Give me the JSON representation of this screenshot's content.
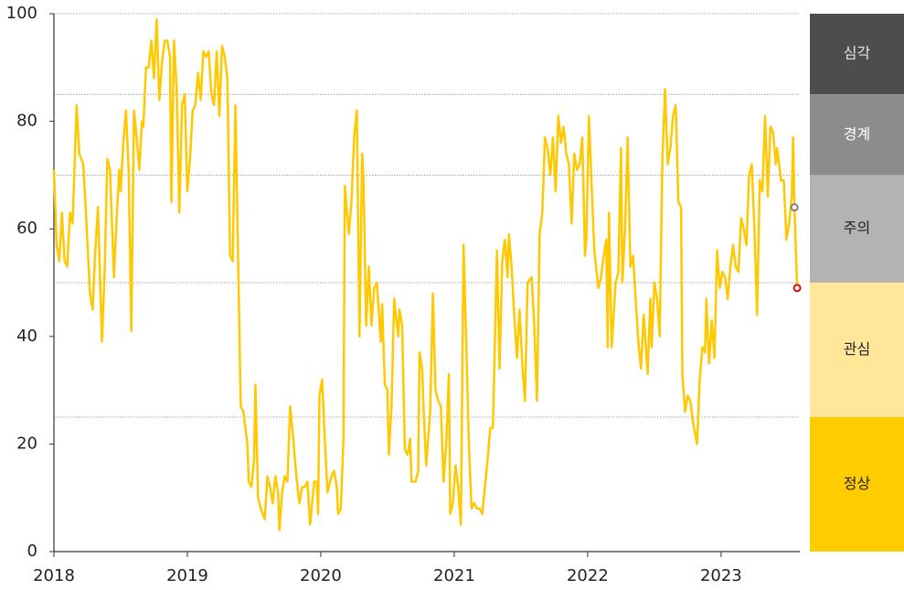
{
  "chart_data": {
    "type": "line",
    "x": [
      2018.0,
      2018.02,
      2018.04,
      2018.06,
      2018.08,
      2018.1,
      2018.12,
      2018.14,
      2018.17,
      2018.19,
      2018.22,
      2018.24,
      2018.27,
      2018.29,
      2018.31,
      2018.33,
      2018.36,
      2018.38,
      2018.4,
      2018.42,
      2018.45,
      2018.47,
      2018.49,
      2018.5,
      2018.52,
      2018.54,
      2018.56,
      2018.58,
      2018.6,
      2018.62,
      2018.64,
      2018.66,
      2018.67,
      2018.69,
      2018.71,
      2018.73,
      2018.75,
      2018.77,
      2018.79,
      2018.81,
      2018.83,
      2018.85,
      2018.87,
      2018.88,
      2018.9,
      2018.92,
      2018.94,
      2018.96,
      2018.98,
      2019.0,
      2019.02,
      2019.04,
      2019.06,
      2019.08,
      2019.1,
      2019.12,
      2019.14,
      2019.16,
      2019.18,
      2019.2,
      2019.22,
      2019.24,
      2019.26,
      2019.28,
      2019.3,
      2019.32,
      2019.34,
      2019.36,
      2019.38,
      2019.4,
      2019.42,
      2019.45,
      2019.46,
      2019.48,
      2019.5,
      2019.51,
      2019.53,
      2019.55,
      2019.58,
      2019.6,
      2019.62,
      2019.64,
      2019.66,
      2019.68,
      2019.69,
      2019.71,
      2019.73,
      2019.75,
      2019.77,
      2019.79,
      2019.81,
      2019.83,
      2019.84,
      2019.86,
      2019.88,
      2019.9,
      2019.92,
      2019.95,
      2019.97,
      2019.98,
      2019.99,
      2020.01,
      2020.03,
      2020.05,
      2020.08,
      2020.1,
      2020.12,
      2020.13,
      2020.15,
      2020.17,
      2020.18,
      2020.21,
      2020.23,
      2020.25,
      2020.27,
      2020.29,
      2020.31,
      2020.32,
      2020.34,
      2020.36,
      2020.38,
      2020.4,
      2020.42,
      2020.45,
      2020.46,
      2020.48,
      2020.5,
      2020.51,
      2020.53,
      2020.55,
      2020.58,
      2020.59,
      2020.61,
      2020.63,
      2020.65,
      2020.67,
      2020.68,
      2020.71,
      2020.73,
      2020.74,
      2020.76,
      2020.77,
      2020.79,
      2020.82,
      2020.84,
      2020.86,
      2020.88,
      2020.9,
      2020.92,
      2020.94,
      2020.96,
      2020.97,
      2020.99,
      2021.01,
      2021.03,
      2021.05,
      2021.07,
      2021.09,
      2021.11,
      2021.13,
      2021.15,
      2021.17,
      2021.19,
      2021.21,
      2021.23,
      2021.25,
      2021.27,
      2021.29,
      2021.32,
      2021.34,
      2021.36,
      2021.38,
      2021.4,
      2021.41,
      2021.43,
      2021.45,
      2021.47,
      2021.49,
      2021.51,
      2021.53,
      2021.55,
      2021.58,
      2021.6,
      2021.62,
      2021.64,
      2021.66,
      2021.68,
      2021.7,
      2021.72,
      2021.74,
      2021.76,
      2021.78,
      2021.8,
      2021.82,
      2021.84,
      2021.86,
      2021.88,
      2021.9,
      2021.92,
      2021.94,
      2021.96,
      2021.98,
      2021.99,
      2022.01,
      2022.03,
      2022.05,
      2022.08,
      2022.1,
      2022.12,
      2022.14,
      2022.15,
      2022.16,
      2022.18,
      2022.21,
      2022.23,
      2022.25,
      2022.26,
      2022.28,
      2022.3,
      2022.32,
      2022.34,
      2022.36,
      2022.38,
      2022.4,
      2022.42,
      2022.45,
      2022.47,
      2022.48,
      2022.5,
      2022.52,
      2022.54,
      2022.56,
      2022.58,
      2022.6,
      2022.62,
      2022.64,
      2022.66,
      2022.68,
      2022.7,
      2022.71,
      2022.73,
      2022.75,
      2022.77,
      2022.79,
      2022.82,
      2022.84,
      2022.86,
      2022.88,
      2022.89,
      2022.91,
      2022.93,
      2022.95,
      2022.97,
      2022.99,
      2023.01,
      2023.03,
      2023.05,
      2023.07,
      2023.09,
      2023.11,
      2023.13,
      2023.15,
      2023.17,
      2023.19,
      2023.21,
      2023.23,
      2023.25,
      2023.27,
      2023.29,
      2023.31,
      2023.33,
      2023.35,
      2023.37,
      2023.39,
      2023.41,
      2023.42,
      2023.45,
      2023.47,
      2023.49,
      2023.51,
      2023.53,
      2023.54,
      2023.55,
      2023.57
    ],
    "series": [
      {
        "color": "#ffc800",
        "values": [
          71,
          57,
          54,
          63,
          54,
          53,
          63,
          61,
          83,
          74,
          72,
          63,
          48,
          45,
          56,
          64,
          39,
          52,
          73,
          71,
          51,
          62,
          71,
          67,
          76,
          82,
          71,
          41,
          82,
          77,
          71,
          80,
          79,
          90,
          90,
          95,
          88,
          99,
          84,
          91,
          95,
          95,
          92,
          65,
          95,
          86,
          63,
          83,
          85,
          67,
          73,
          82,
          83,
          89,
          84,
          93,
          92,
          93,
          85,
          83,
          93,
          81,
          94,
          92,
          88,
          55,
          54,
          83,
          55,
          27,
          26,
          20,
          13,
          12,
          17,
          31,
          10,
          8,
          6,
          14,
          12,
          9,
          14,
          11,
          4,
          11,
          14,
          13,
          27,
          22,
          16,
          11,
          9,
          12,
          12,
          13,
          5,
          13,
          13,
          7,
          29,
          32,
          21,
          11,
          14,
          15,
          12,
          7,
          8,
          21,
          68,
          59,
          65,
          77,
          82,
          40,
          74,
          69,
          42,
          53,
          42,
          49,
          50,
          39,
          46,
          31,
          30,
          18,
          27,
          47,
          40,
          45,
          42,
          19,
          18,
          21,
          13,
          13,
          15,
          37,
          34,
          27,
          16,
          26,
          48,
          30,
          28,
          27,
          13,
          20,
          33,
          7,
          9,
          16,
          12,
          5,
          57,
          39,
          20,
          8,
          9,
          8,
          8,
          7,
          12,
          17,
          23,
          23,
          56,
          34,
          54,
          58,
          51,
          59,
          53,
          44,
          36,
          45,
          35,
          28,
          50,
          51,
          42,
          28,
          59,
          63,
          77,
          75,
          70,
          77,
          67,
          81,
          76,
          79,
          74,
          72,
          61,
          74,
          71,
          72,
          77,
          55,
          58,
          81,
          68,
          56,
          49,
          51,
          55,
          58,
          38,
          63,
          38,
          50,
          52,
          75,
          50,
          60,
          77,
          53,
          55,
          47,
          39,
          34,
          44,
          33,
          47,
          38,
          50,
          47,
          40,
          73,
          86,
          72,
          75,
          81,
          83,
          65,
          64,
          33,
          26,
          29,
          28,
          24,
          20,
          32,
          38,
          37,
          47,
          35,
          43,
          36,
          56,
          49,
          52,
          51,
          47,
          53,
          57,
          53,
          52,
          62,
          60,
          57,
          70,
          72,
          60,
          44,
          69,
          67,
          81,
          66,
          79,
          78,
          72,
          75,
          69,
          69,
          58,
          61,
          66,
          77,
          64,
          49
        ]
      }
    ],
    "markers": [
      {
        "x": 2023.55,
        "y": 64,
        "color": "#808080"
      },
      {
        "x": 2023.57,
        "y": 49,
        "color": "#e00000"
      }
    ],
    "bands": [
      {
        "label": "심각",
        "from": 85,
        "to": 100,
        "color": "#4d4d4d",
        "text_color": "#e6e6e6"
      },
      {
        "label": "경계",
        "from": 70,
        "to": 85,
        "color": "#8c8c8c",
        "text_color": "#ffffff"
      },
      {
        "label": "주의",
        "from": 50,
        "to": 70,
        "color": "#b3b3b3",
        "text_color": "#222222"
      },
      {
        "label": "관심",
        "from": 25,
        "to": 50,
        "color": "#ffe699",
        "text_color": "#222222"
      },
      {
        "label": "정상",
        "from": 0,
        "to": 25,
        "color": "#ffcc00",
        "text_color": "#222222"
      }
    ],
    "xlim": [
      2018,
      2023.59
    ],
    "xticks": [
      2018,
      2019,
      2020,
      2021,
      2022,
      2023
    ],
    "ylim": [
      0,
      100
    ],
    "yticks": [
      0,
      20,
      40,
      60,
      80,
      100
    ]
  }
}
